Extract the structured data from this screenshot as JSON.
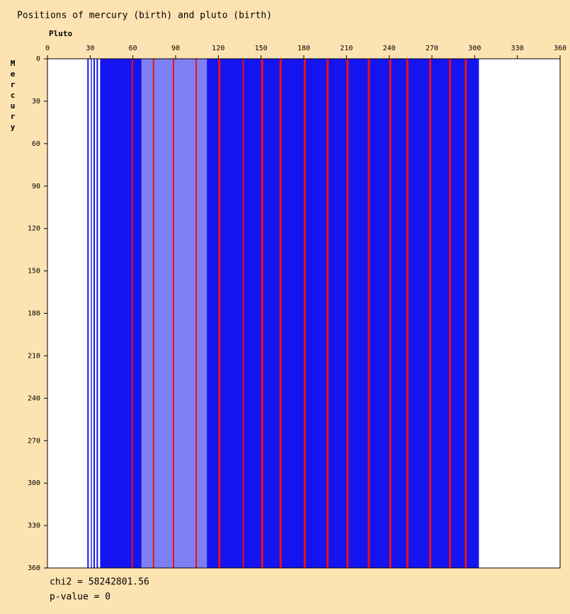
{
  "chart_data": {
    "type": "heatmap",
    "title": "Positions of mercury (birth) and pluto (birth)",
    "x_label": "Pluto",
    "y_label": "Mercury",
    "xlim": [
      0,
      360
    ],
    "ylim": [
      0,
      360
    ],
    "xticks": [
      0,
      30,
      60,
      90,
      120,
      150,
      180,
      210,
      240,
      270,
      300,
      330,
      360
    ],
    "yticks": [
      0,
      30,
      60,
      90,
      120,
      150,
      180,
      210,
      240,
      270,
      300,
      330,
      360
    ],
    "bands": [
      {
        "x0": 28,
        "x1": 29,
        "color": "#1414f0"
      },
      {
        "x0": 30.5,
        "x1": 31.2,
        "color": "#1414f0"
      },
      {
        "x0": 32.3,
        "x1": 33.3,
        "color": "#1414f0"
      },
      {
        "x0": 34.5,
        "x1": 35.5,
        "color": "#1414f0"
      },
      {
        "x0": 37,
        "x1": 303,
        "color": "#1414f0"
      },
      {
        "x0": 66,
        "x1": 112,
        "color": "#7f7ff5"
      },
      {
        "x0": 59,
        "x1": 60,
        "color": "#ee1111"
      },
      {
        "x0": 74,
        "x1": 75,
        "color": "#ee1111"
      },
      {
        "x0": 88,
        "x1": 89,
        "color": "#ee1111"
      },
      {
        "x0": 104,
        "x1": 105,
        "color": "#ee1111"
      },
      {
        "x0": 120,
        "x1": 121.5,
        "color": "#ee1111"
      },
      {
        "x0": 137,
        "x1": 138,
        "color": "#ee1111"
      },
      {
        "x0": 150,
        "x1": 151.5,
        "color": "#ee1111"
      },
      {
        "x0": 163,
        "x1": 164.5,
        "color": "#ee1111"
      },
      {
        "x0": 180,
        "x1": 181.5,
        "color": "#ee1111"
      },
      {
        "x0": 196,
        "x1": 197.5,
        "color": "#ee1111"
      },
      {
        "x0": 210,
        "x1": 211.5,
        "color": "#ee1111"
      },
      {
        "x0": 225,
        "x1": 226.5,
        "color": "#ee1111"
      },
      {
        "x0": 240,
        "x1": 241.5,
        "color": "#ee1111"
      },
      {
        "x0": 252,
        "x1": 253.5,
        "color": "#ee1111"
      },
      {
        "x0": 268,
        "x1": 269.5,
        "color": "#ee1111"
      },
      {
        "x0": 282,
        "x1": 283.5,
        "color": "#ee1111"
      },
      {
        "x0": 293,
        "x1": 294.5,
        "color": "#ee1111"
      }
    ],
    "chi2_text": "chi2 = 58242801.56",
    "pvalue_text": "p-value = 0"
  }
}
